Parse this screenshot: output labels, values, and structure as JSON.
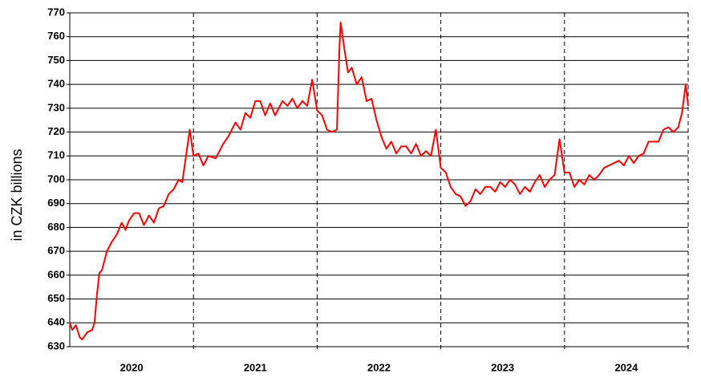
{
  "chart_data": {
    "type": "line",
    "y_label": "in CZK billions",
    "ylim": [
      630,
      770
    ],
    "yticks": [
      630,
      640,
      650,
      660,
      670,
      680,
      690,
      700,
      710,
      720,
      730,
      740,
      750,
      760,
      770
    ],
    "xlim": [
      2020,
      2025
    ],
    "xticks": [
      2021,
      2022,
      2023,
      2024,
      2025
    ],
    "x_labels": [
      {
        "value": 2020.5,
        "label": "2020"
      },
      {
        "value": 2021.5,
        "label": "2021"
      },
      {
        "value": 2022.5,
        "label": "2022"
      },
      {
        "value": 2023.5,
        "label": "2023"
      },
      {
        "value": 2024.5,
        "label": "2024"
      }
    ],
    "grid": true,
    "x": [
      2020.0,
      2020.02,
      2020.05,
      2020.08,
      2020.1,
      2020.14,
      2020.18,
      2020.2,
      2020.22,
      2020.24,
      2020.26,
      2020.3,
      2020.34,
      2020.38,
      2020.42,
      2020.45,
      2020.48,
      2020.52,
      2020.56,
      2020.6,
      2020.64,
      2020.68,
      2020.72,
      2020.76,
      2020.8,
      2020.84,
      2020.88,
      2020.91,
      2020.94,
      2020.97,
      2021.0,
      2021.04,
      2021.08,
      2021.12,
      2021.18,
      2021.24,
      2021.28,
      2021.34,
      2021.38,
      2021.42,
      2021.46,
      2021.5,
      2021.54,
      2021.58,
      2021.62,
      2021.66,
      2021.72,
      2021.76,
      2021.8,
      2021.84,
      2021.88,
      2021.92,
      2021.96,
      2022.0,
      2022.04,
      2022.08,
      2022.12,
      2022.16,
      2022.18,
      2022.19,
      2022.22,
      2022.25,
      2022.28,
      2022.32,
      2022.36,
      2022.4,
      2022.44,
      2022.48,
      2022.52,
      2022.56,
      2022.6,
      2022.64,
      2022.68,
      2022.72,
      2022.76,
      2022.8,
      2022.84,
      2022.88,
      2022.92,
      2022.96,
      2023.0,
      2023.04,
      2023.08,
      2023.12,
      2023.16,
      2023.2,
      2023.24,
      2023.28,
      2023.32,
      2023.36,
      2023.4,
      2023.44,
      2023.48,
      2023.52,
      2023.56,
      2023.6,
      2023.64,
      2023.68,
      2023.72,
      2023.76,
      2023.8,
      2023.84,
      2023.88,
      2023.92,
      2023.96,
      2024.0,
      2024.04,
      2024.08,
      2024.12,
      2024.16,
      2024.2,
      2024.24,
      2024.28,
      2024.32,
      2024.36,
      2024.4,
      2024.44,
      2024.48,
      2024.52,
      2024.56,
      2024.6,
      2024.64,
      2024.68,
      2024.72,
      2024.76,
      2024.8,
      2024.84,
      2024.88,
      2024.92,
      2024.95,
      2024.98,
      2025.0
    ],
    "series": [
      {
        "color": "#ff0000",
        "values": [
          640,
          637,
          639,
          634,
          633,
          636,
          637,
          640,
          652,
          661,
          662,
          670,
          674,
          677,
          682,
          679,
          683,
          686,
          686,
          681,
          685,
          682,
          688,
          689,
          694,
          696,
          700,
          699,
          710,
          721,
          710,
          711,
          706,
          710,
          709,
          715,
          718,
          724,
          721,
          728,
          726,
          733,
          733,
          727,
          732,
          727,
          733,
          731,
          734,
          730,
          733,
          731,
          742,
          729,
          727,
          721,
          720,
          721,
          755,
          766,
          755,
          745,
          747,
          740,
          743,
          733,
          734,
          725,
          718,
          713,
          716,
          711,
          714,
          714,
          711,
          715,
          710,
          712,
          710,
          721,
          705,
          703,
          697,
          694,
          693,
          689,
          691,
          696,
          694,
          697,
          697,
          695,
          699,
          697,
          700,
          698,
          694,
          697,
          695,
          699,
          702,
          697,
          700,
          702,
          717,
          703,
          703,
          697,
          700,
          698,
          702,
          700,
          702,
          705,
          706,
          707,
          708,
          706,
          710,
          707,
          710,
          711,
          716,
          716,
          716,
          721,
          722,
          720,
          722,
          728,
          740,
          731
        ]
      }
    ]
  }
}
